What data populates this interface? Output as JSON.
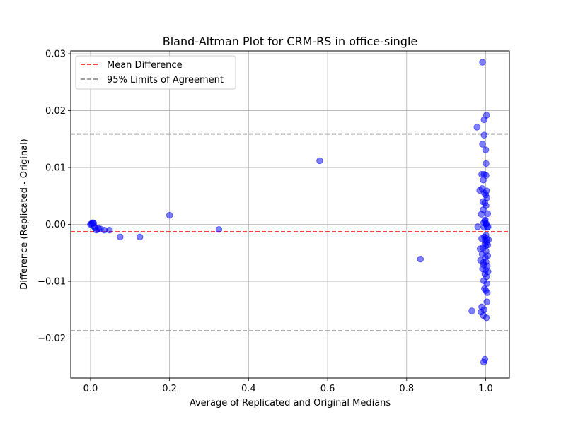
{
  "chart_data": {
    "type": "scatter",
    "title": "Bland-Altman Plot for CRM-RS in office-single",
    "xlabel": "Average of Replicated and Original Medians",
    "ylabel": "Difference (Replicated - Original)",
    "xlim": [
      -0.05,
      1.06
    ],
    "ylim": [
      -0.027,
      0.0305
    ],
    "x_ticks": [
      0.0,
      0.2,
      0.4,
      0.6,
      0.8,
      1.0
    ],
    "x_tick_labels": [
      "0.0",
      "0.2",
      "0.4",
      "0.6",
      "0.8",
      "1.0"
    ],
    "y_ticks": [
      -0.02,
      -0.01,
      0.0,
      0.01,
      0.02,
      0.03
    ],
    "y_tick_labels": [
      "−0.02",
      "−0.01",
      "0.00",
      "0.01",
      "0.02",
      "0.03"
    ],
    "grid": true,
    "legend_position": "top-left",
    "legend": [
      {
        "label": "Mean Difference",
        "color": "#ff0000",
        "style": "dashed"
      },
      {
        "label": "95% Limits of Agreement",
        "color": "#808080",
        "style": "dashed"
      }
    ],
    "mean_difference": -0.0013,
    "limits_of_agreement": [
      -0.0187,
      0.0159
    ],
    "point_color": "#0000ff",
    "points": [
      {
        "x": 0.0,
        "y": 0.0
      },
      {
        "x": 0.002,
        "y": 0.0001
      },
      {
        "x": 0.004,
        "y": 0.0002
      },
      {
        "x": 0.006,
        "y": 0.0003
      },
      {
        "x": 0.008,
        "y": 0.0002
      },
      {
        "x": 0.01,
        "y": -0.0005
      },
      {
        "x": 0.012,
        "y": -0.0006
      },
      {
        "x": 0.015,
        "y": -0.001
      },
      {
        "x": 0.02,
        "y": -0.0007
      },
      {
        "x": 0.025,
        "y": -0.0008
      },
      {
        "x": 0.035,
        "y": -0.001
      },
      {
        "x": 0.048,
        "y": -0.001
      },
      {
        "x": 0.075,
        "y": -0.0022
      },
      {
        "x": 0.125,
        "y": -0.0022
      },
      {
        "x": 0.2,
        "y": 0.0016
      },
      {
        "x": 0.325,
        "y": -0.0009
      },
      {
        "x": 0.58,
        "y": 0.0112
      },
      {
        "x": 0.835,
        "y": -0.0061
      },
      {
        "x": 0.965,
        "y": -0.0152
      },
      {
        "x": 0.978,
        "y": 0.0171
      },
      {
        "x": 0.98,
        "y": -0.0004
      },
      {
        "x": 0.985,
        "y": 0.006
      },
      {
        "x": 0.986,
        "y": -0.0043
      },
      {
        "x": 0.987,
        "y": -0.0063
      },
      {
        "x": 0.988,
        "y": -0.0154
      },
      {
        "x": 0.989,
        "y": 0.0018
      },
      {
        "x": 0.99,
        "y": 0.0088
      },
      {
        "x": 0.99,
        "y": -0.0025
      },
      {
        "x": 0.99,
        "y": -0.0145
      },
      {
        "x": 0.991,
        "y": 0.0063
      },
      {
        "x": 0.991,
        "y": -0.0052
      },
      {
        "x": 0.992,
        "y": 0.0285
      },
      {
        "x": 0.992,
        "y": 0.0141
      },
      {
        "x": 0.992,
        "y": -0.0078
      },
      {
        "x": 0.993,
        "y": 0.004
      },
      {
        "x": 0.993,
        "y": -0.0041
      },
      {
        "x": 0.994,
        "y": 0.0078
      },
      {
        "x": 0.994,
        "y": 0.0026
      },
      {
        "x": 0.994,
        "y": -0.0067
      },
      {
        "x": 0.994,
        "y": -0.016
      },
      {
        "x": 0.995,
        "y": 0.0003
      },
      {
        "x": 0.995,
        "y": -0.0071
      },
      {
        "x": 0.995,
        "y": -0.0099
      },
      {
        "x": 0.995,
        "y": -0.0242
      },
      {
        "x": 0.996,
        "y": 0.0184
      },
      {
        "x": 0.996,
        "y": 0.0157
      },
      {
        "x": 0.996,
        "y": 0.0088
      },
      {
        "x": 0.996,
        "y": -0.0005
      },
      {
        "x": 0.996,
        "y": -0.015
      },
      {
        "x": 0.997,
        "y": 0.0055
      },
      {
        "x": 0.997,
        "y": -0.0022
      },
      {
        "x": 0.997,
        "y": -0.0113
      },
      {
        "x": 0.998,
        "y": 0.0038
      },
      {
        "x": 0.998,
        "y": 0.0006
      },
      {
        "x": 0.998,
        "y": -0.0034
      },
      {
        "x": 0.998,
        "y": -0.0087
      },
      {
        "x": 0.998,
        "y": -0.0237
      },
      {
        "x": 0.999,
        "y": 0.0008
      },
      {
        "x": 0.999,
        "y": -0.0028
      },
      {
        "x": 0.999,
        "y": -0.0058
      },
      {
        "x": 1.0,
        "y": 0.0131
      },
      {
        "x": 1.0,
        "y": 0.0052
      },
      {
        "x": 1.0,
        "y": 0.0001
      },
      {
        "x": 1.0,
        "y": -0.0038
      },
      {
        "x": 1.0,
        "y": -0.008
      },
      {
        "x": 1.0,
        "y": -0.0116
      },
      {
        "x": 1.001,
        "y": 0.0107
      },
      {
        "x": 1.001,
        "y": 0.0086
      },
      {
        "x": 1.001,
        "y": 0.0033
      },
      {
        "x": 1.001,
        "y": -0.0019
      },
      {
        "x": 1.001,
        "y": -0.0047
      },
      {
        "x": 1.001,
        "y": -0.0066
      },
      {
        "x": 1.002,
        "y": 0.0192
      },
      {
        "x": 1.002,
        "y": 0.0059
      },
      {
        "x": 1.002,
        "y": 0.0001
      },
      {
        "x": 1.002,
        "y": -0.0025
      },
      {
        "x": 1.002,
        "y": -0.0092
      },
      {
        "x": 1.002,
        "y": -0.0164
      },
      {
        "x": 1.003,
        "y": 0.0047
      },
      {
        "x": 1.003,
        "y": -0.0031
      },
      {
        "x": 1.003,
        "y": -0.0104
      },
      {
        "x": 1.003,
        "y": -0.0136
      },
      {
        "x": 1.004,
        "y": -0.0005
      },
      {
        "x": 1.004,
        "y": -0.0073
      },
      {
        "x": 1.004,
        "y": -0.012
      },
      {
        "x": 1.005,
        "y": 0.0019
      },
      {
        "x": 1.005,
        "y": -0.0036
      },
      {
        "x": 1.005,
        "y": -0.0055
      },
      {
        "x": 1.006,
        "y": -0.0083
      },
      {
        "x": 1.006,
        "y": -0.0004
      },
      {
        "x": 1.007,
        "y": -0.0027
      }
    ]
  }
}
